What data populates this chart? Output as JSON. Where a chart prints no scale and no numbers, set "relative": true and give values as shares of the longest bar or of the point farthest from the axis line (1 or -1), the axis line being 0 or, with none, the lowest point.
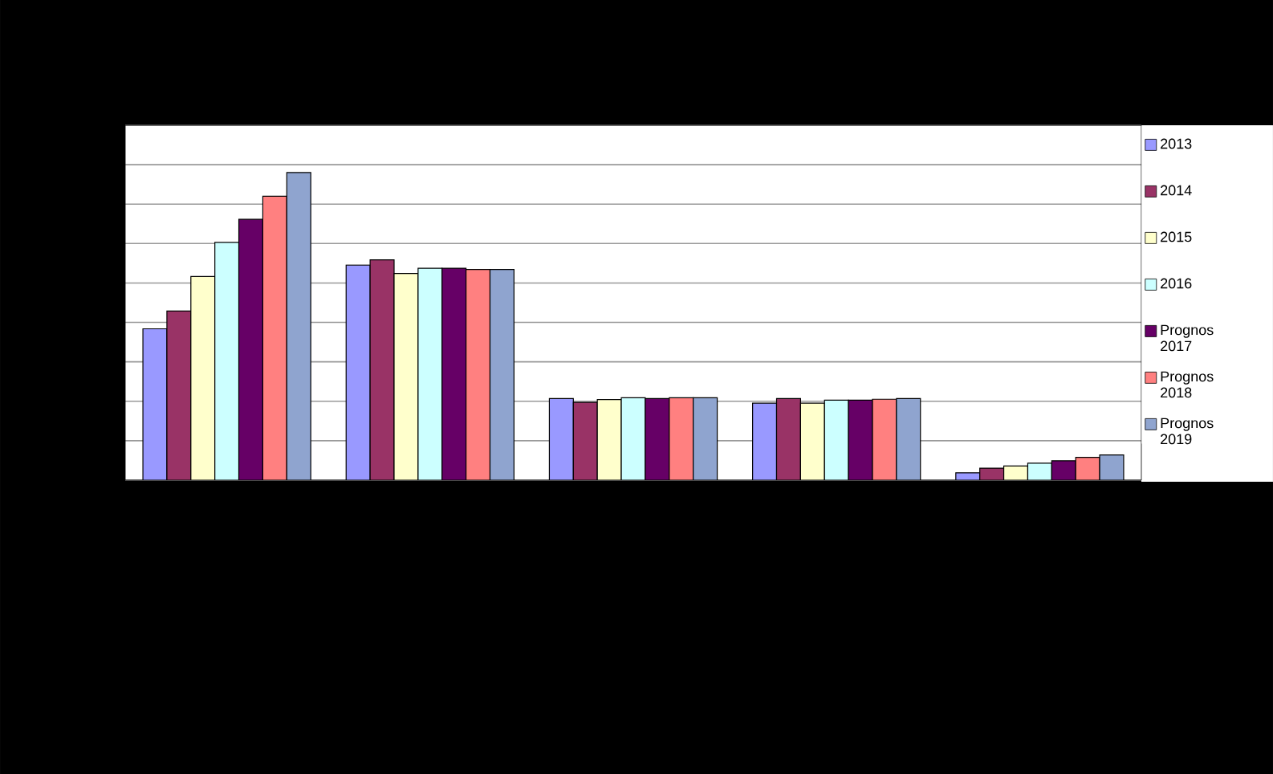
{
  "chart_data": {
    "type": "bar",
    "relative": true,
    "grid": "y",
    "legend": "right",
    "categories": [
      null,
      null,
      null,
      null,
      null
    ],
    "series": [
      {
        "name": "2013",
        "color": "#9999ff",
        "values": [
          0.492,
          0.699,
          0.265,
          0.25,
          0.024
        ]
      },
      {
        "name": "2014",
        "color": "#993366",
        "values": [
          0.55,
          0.716,
          0.253,
          0.265,
          0.039
        ]
      },
      {
        "name": "2015",
        "color": "#ffffcc",
        "values": [
          0.662,
          0.672,
          0.262,
          0.25,
          0.046
        ]
      },
      {
        "name": "2016",
        "color": "#ccffff",
        "values": [
          0.773,
          0.689,
          0.268,
          0.26,
          0.055
        ]
      },
      {
        "name": "Prognos 2017",
        "color": "#660066",
        "values": [
          0.848,
          0.689,
          0.265,
          0.26,
          0.063
        ]
      },
      {
        "name": "Prognos 2018",
        "color": "#ff8080",
        "values": [
          0.923,
          0.685,
          0.268,
          0.263,
          0.074
        ]
      },
      {
        "name": "Prognos 2019",
        "color": "#8fa4cf",
        "values": [
          1,
          0.685,
          0.268,
          0.265,
          0.082
        ]
      }
    ]
  }
}
